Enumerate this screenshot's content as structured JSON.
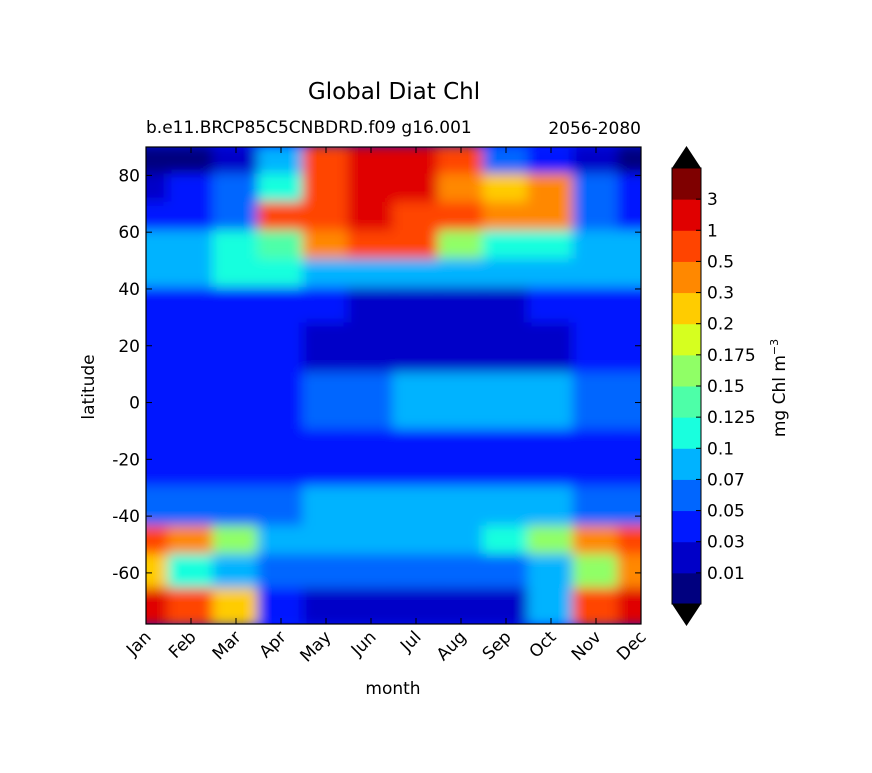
{
  "chart_data": {
    "type": "heatmap",
    "title": "Global Diat Chl",
    "subtitle_left": "b.e11.BRCP85C5CNBDRD.f09 g16.001",
    "subtitle_right": "2056-2080",
    "xlabel": "month",
    "ylabel": "latitude",
    "x_ticks": [
      "Jan",
      "Feb",
      "Mar",
      "Apr",
      "May",
      "Jun",
      "Jul",
      "Aug",
      "Sep",
      "Oct",
      "Nov",
      "Dec"
    ],
    "y_ticks": [
      80,
      60,
      40,
      20,
      0,
      -20,
      -40,
      -60
    ],
    "ylim": [
      -78,
      90
    ],
    "colorbar": {
      "label": "mg Chl m",
      "label_exponent": "−3",
      "levels": [
        "0.01",
        "0.03",
        "0.05",
        "0.07",
        "0.1",
        "0.125",
        "0.15",
        "0.175",
        "0.2",
        "0.3",
        "0.5",
        "1",
        "3"
      ],
      "colors": [
        "#00007f",
        "#0000c8",
        "#0019ff",
        "#0066ff",
        "#00b3ff",
        "#19ffde",
        "#4dffa8",
        "#90ff66",
        "#d6ff1f",
        "#ffcc00",
        "#ff8800",
        "#ff4400",
        "#e00000",
        "#7f0000"
      ],
      "extend": "both"
    },
    "regions_note_free": true,
    "field": [
      {
        "lat": 85,
        "values": [
          0.005,
          0.005,
          0.02,
          0.08,
          0.6,
          2,
          2,
          0.6,
          0.06,
          0.04,
          0.02,
          0.005
        ]
      },
      {
        "lat": 75,
        "values": [
          0.02,
          0.03,
          0.05,
          0.12,
          0.8,
          2,
          2,
          0.4,
          0.25,
          0.3,
          0.06,
          0.03
        ]
      },
      {
        "lat": 65,
        "values": [
          0.04,
          0.04,
          0.06,
          0.5,
          0.8,
          1.5,
          0.8,
          0.5,
          0.4,
          0.35,
          0.06,
          0.04
        ]
      },
      {
        "lat": 55,
        "values": [
          0.08,
          0.09,
          0.11,
          0.13,
          0.35,
          0.8,
          0.5,
          0.15,
          0.11,
          0.1,
          0.09,
          0.08
        ]
      },
      {
        "lat": 45,
        "values": [
          0.08,
          0.09,
          0.1,
          0.1,
          0.09,
          0.09,
          0.08,
          0.08,
          0.08,
          0.09,
          0.09,
          0.08
        ]
      },
      {
        "lat": 35,
        "values": [
          0.04,
          0.04,
          0.04,
          0.04,
          0.03,
          0.02,
          0.01,
          0.01,
          0.02,
          0.04,
          0.04,
          0.04
        ]
      },
      {
        "lat": 20,
        "values": [
          0.035,
          0.04,
          0.03,
          0.03,
          0.025,
          0.025,
          0.025,
          0.025,
          0.025,
          0.025,
          0.03,
          0.035
        ]
      },
      {
        "lat": 0,
        "values": [
          0.04,
          0.04,
          0.04,
          0.04,
          0.05,
          0.06,
          0.07,
          0.08,
          0.08,
          0.07,
          0.06,
          0.05
        ]
      },
      {
        "lat": -20,
        "values": [
          0.04,
          0.04,
          0.035,
          0.035,
          0.04,
          0.04,
          0.04,
          0.04,
          0.04,
          0.04,
          0.04,
          0.04
        ]
      },
      {
        "lat": -40,
        "values": [
          0.06,
          0.06,
          0.06,
          0.06,
          0.07,
          0.07,
          0.08,
          0.08,
          0.08,
          0.07,
          0.06,
          0.06
        ]
      },
      {
        "lat": -48,
        "values": [
          0.5,
          0.3,
          0.15,
          0.08,
          0.07,
          0.07,
          0.075,
          0.08,
          0.1,
          0.15,
          0.3,
          0.5
        ]
      },
      {
        "lat": -60,
        "values": [
          0.2,
          0.1,
          0.08,
          0.06,
          0.05,
          0.05,
          0.05,
          0.05,
          0.05,
          0.07,
          0.15,
          0.3
        ]
      },
      {
        "lat": -72,
        "values": [
          1,
          0.5,
          0.2,
          0.04,
          0.02,
          0.02,
          0.01,
          0.01,
          0.02,
          0.08,
          0.5,
          1
        ]
      }
    ]
  }
}
